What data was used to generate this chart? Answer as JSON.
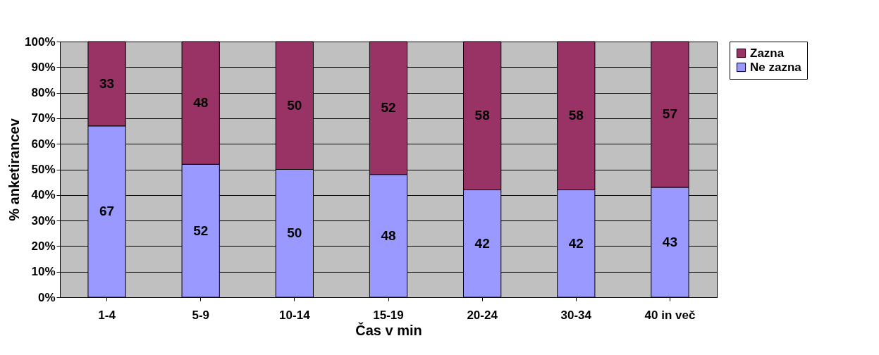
{
  "chart_data": {
    "type": "bar",
    "stacked": true,
    "xlabel": "Čas v min",
    "ylabel": "% anketirancev",
    "categories": [
      "1-4",
      "5-9",
      "10-14",
      "15-19",
      "20-24",
      "30-34",
      "40 in več"
    ],
    "series": [
      {
        "name": "Ne zazna",
        "color": "#9999ff",
        "values": [
          67,
          52,
          50,
          48,
          42,
          42,
          43
        ]
      },
      {
        "name": "Zazna",
        "color": "#993366",
        "values": [
          33,
          48,
          50,
          52,
          58,
          58,
          57
        ]
      }
    ],
    "ylim": [
      0,
      100
    ],
    "yticks": [
      {
        "value": 0,
        "label": "0%"
      },
      {
        "value": 10,
        "label": "10%"
      },
      {
        "value": 20,
        "label": "20%"
      },
      {
        "value": 30,
        "label": "30%"
      },
      {
        "value": 40,
        "label": "40%"
      },
      {
        "value": 50,
        "label": "50%"
      },
      {
        "value": 60,
        "label": "60%"
      },
      {
        "value": 70,
        "label": "70%"
      },
      {
        "value": 80,
        "label": "80%"
      },
      {
        "value": 90,
        "label": "90%"
      },
      {
        "value": 100,
        "label": "100%"
      }
    ],
    "grid": "y",
    "legend": "right",
    "data_labels": true
  }
}
